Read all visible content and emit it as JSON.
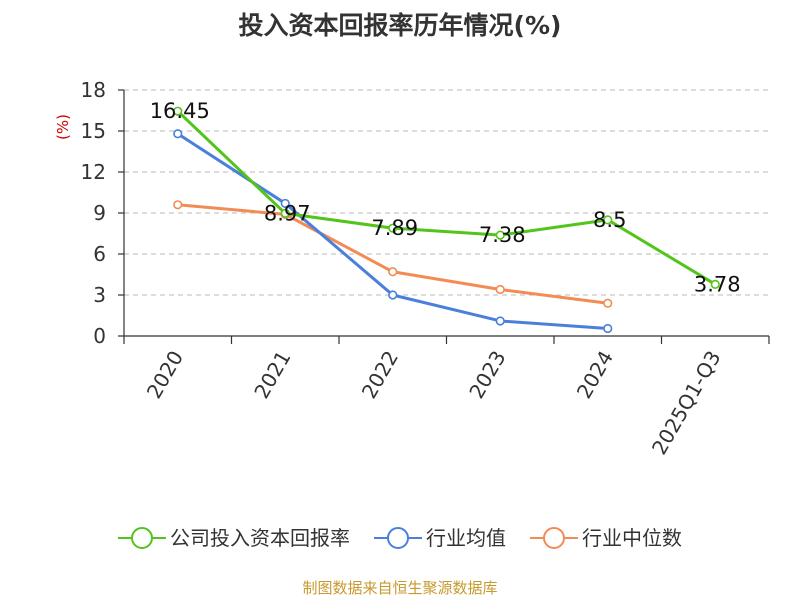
{
  "chart_data": {
    "type": "line",
    "title": "投入资本回报率历年情况(%)",
    "ylabel": "(%)",
    "xlabel": "",
    "categories": [
      "2020",
      "2021",
      "2022",
      "2023",
      "2024",
      "2025Q1-Q3"
    ],
    "ylim": [
      0,
      18
    ],
    "yticks": [
      0,
      3,
      6,
      9,
      12,
      15,
      18
    ],
    "grid": true,
    "legend_position": "bottom",
    "series": [
      {
        "name": "公司投入资本回报率",
        "color": "#52c41a",
        "values": [
          16.45,
          8.97,
          7.89,
          7.38,
          8.5,
          3.78
        ],
        "labels": [
          "16.45",
          "8.97",
          "7.89",
          "7.38",
          "8.5",
          "3.78"
        ]
      },
      {
        "name": "行业均值",
        "color": "#4a7fdc",
        "values": [
          14.8,
          9.7,
          3.0,
          1.1,
          0.55,
          null
        ]
      },
      {
        "name": "行业中位数",
        "color": "#f28b54",
        "values": [
          9.6,
          8.9,
          4.7,
          3.4,
          2.4,
          null
        ]
      }
    ]
  },
  "source": "制图数据来自恒生聚源数据库"
}
